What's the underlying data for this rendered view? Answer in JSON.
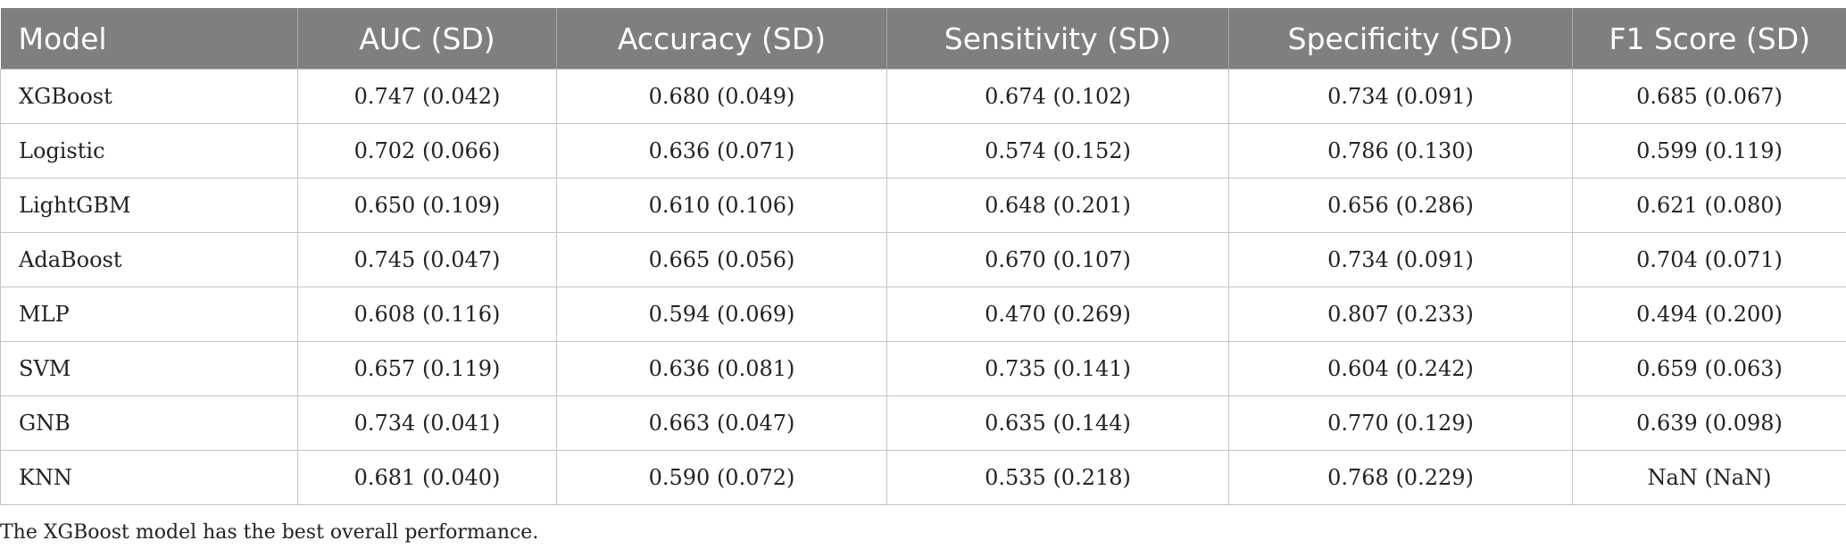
{
  "table": {
    "headers": [
      "Model",
      "AUC (SD)",
      "Accuracy (SD)",
      "Sensitivity (SD)",
      "Specificity (SD)",
      "F1 Score (SD)"
    ],
    "rows": [
      [
        "XGBoost",
        "0.747 (0.042)",
        "0.680 (0.049)",
        "0.674 (0.102)",
        "0.734 (0.091)",
        "0.685 (0.067)"
      ],
      [
        "Logistic",
        "0.702 (0.066)",
        "0.636 (0.071)",
        "0.574 (0.152)",
        "0.786 (0.130)",
        "0.599 (0.119)"
      ],
      [
        "LightGBM",
        "0.650 (0.109)",
        "0.610 (0.106)",
        "0.648 (0.201)",
        "0.656 (0.286)",
        "0.621 (0.080)"
      ],
      [
        "AdaBoost",
        "0.745 (0.047)",
        "0.665 (0.056)",
        "0.670 (0.107)",
        "0.734 (0.091)",
        "0.704 (0.071)"
      ],
      [
        "MLP",
        "0.608 (0.116)",
        "0.594 (0.069)",
        "0.470 (0.269)",
        "0.807 (0.233)",
        "0.494 (0.200)"
      ],
      [
        "SVM",
        "0.657 (0.119)",
        "0.636 (0.081)",
        "0.735 (0.141)",
        "0.604 (0.242)",
        "0.659 (0.063)"
      ],
      [
        "GNB",
        "0.734 (0.041)",
        "0.663 (0.047)",
        "0.635 (0.144)",
        "0.770 (0.129)",
        "0.639 (0.098)"
      ],
      [
        "KNN",
        "0.681 (0.040)",
        "0.590 (0.072)",
        "0.535 (0.218)",
        "0.768 (0.229)",
        "NaN (NaN)"
      ]
    ]
  },
  "footnote": "The XGBoost model has the best overall performance."
}
